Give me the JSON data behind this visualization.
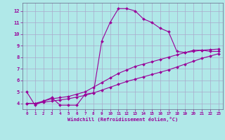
{
  "xlabel": "Windchill (Refroidissement éolien,°C)",
  "line_color": "#990099",
  "bg_color": "#b0e8e8",
  "grid_color": "#aaaacc",
  "xlim": [
    -0.5,
    23.5
  ],
  "ylim": [
    3.5,
    12.7
  ],
  "xticks": [
    0,
    1,
    2,
    3,
    4,
    5,
    6,
    7,
    8,
    9,
    10,
    11,
    12,
    13,
    14,
    15,
    16,
    17,
    18,
    19,
    20,
    21,
    22,
    23
  ],
  "yticks": [
    4,
    5,
    6,
    7,
    8,
    9,
    10,
    11,
    12
  ],
  "line1_x": [
    0,
    1,
    2,
    3,
    4,
    5,
    6,
    7,
    8,
    9,
    10,
    11,
    12,
    13,
    14,
    15,
    16,
    17,
    18,
    19,
    20,
    21,
    22,
    23
  ],
  "line1_y": [
    5.0,
    3.85,
    4.2,
    4.5,
    3.85,
    3.85,
    3.85,
    4.8,
    4.9,
    9.4,
    11.0,
    12.2,
    12.2,
    12.0,
    11.3,
    11.0,
    10.5,
    10.2,
    8.5,
    8.4,
    8.6,
    8.6,
    8.5,
    8.5
  ],
  "line2_x": [
    0,
    1,
    2,
    3,
    4,
    5,
    6,
    7,
    8,
    9,
    10,
    11,
    12,
    13,
    14,
    15,
    16,
    17,
    18,
    19,
    20,
    21,
    22,
    23
  ],
  "line2_y": [
    4.0,
    4.0,
    4.2,
    4.4,
    4.5,
    4.6,
    4.8,
    5.0,
    5.4,
    5.8,
    6.2,
    6.6,
    6.9,
    7.2,
    7.4,
    7.6,
    7.8,
    8.0,
    8.2,
    8.4,
    8.5,
    8.6,
    8.65,
    8.7
  ],
  "line3_x": [
    0,
    1,
    2,
    3,
    4,
    5,
    6,
    7,
    8,
    9,
    10,
    11,
    12,
    13,
    14,
    15,
    16,
    17,
    18,
    19,
    20,
    21,
    22,
    23
  ],
  "line3_y": [
    4.0,
    4.0,
    4.1,
    4.2,
    4.3,
    4.4,
    4.55,
    4.7,
    4.9,
    5.15,
    5.4,
    5.65,
    5.9,
    6.1,
    6.3,
    6.5,
    6.7,
    6.9,
    7.15,
    7.4,
    7.65,
    7.9,
    8.1,
    8.3
  ]
}
